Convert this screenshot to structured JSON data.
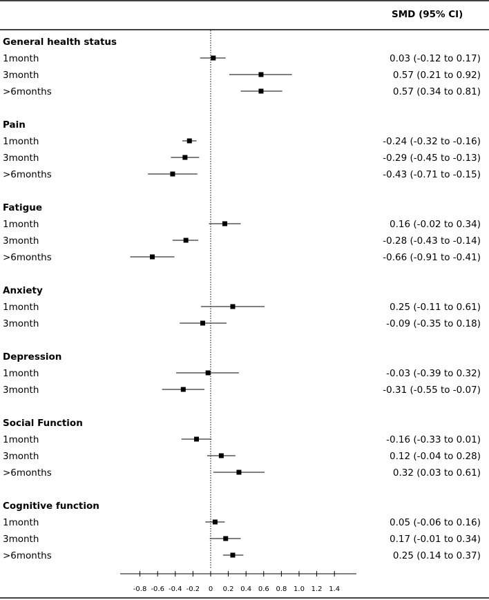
{
  "chart_data": {
    "type": "forest",
    "header": {
      "effect_label": "SMD (95% CI)"
    },
    "x_axis": {
      "ticks": [
        -0.8,
        -0.6,
        -0.4,
        -0.2,
        0,
        0.2,
        0.4,
        0.6,
        0.8,
        1.0,
        1.2,
        1.4
      ],
      "tick_labels": [
        "-0.8",
        "-0.6",
        "-0.4",
        "-0.2",
        "0",
        "0.2",
        "0.4",
        "0.6",
        "0.8",
        "1.0",
        "1.2",
        "1.4"
      ],
      "reference_line": 0
    },
    "groups": [
      {
        "name": "General health status",
        "rows": [
          {
            "label": "1month",
            "est": 0.03,
            "lo": -0.12,
            "hi": 0.17,
            "ci_text": "0.03 (-0.12 to 0.17)"
          },
          {
            "label": "3month",
            "est": 0.57,
            "lo": 0.21,
            "hi": 0.92,
            "ci_text": "0.57 (0.21 to 0.92)"
          },
          {
            "label": ">6months",
            "est": 0.57,
            "lo": 0.34,
            "hi": 0.81,
            "ci_text": "0.57 (0.34 to 0.81)"
          }
        ]
      },
      {
        "name": "Pain",
        "rows": [
          {
            "label": "1month",
            "est": -0.24,
            "lo": -0.32,
            "hi": -0.16,
            "ci_text": "-0.24 (-0.32 to -0.16)"
          },
          {
            "label": "3month",
            "est": -0.29,
            "lo": -0.45,
            "hi": -0.13,
            "ci_text": "-0.29 (-0.45 to -0.13)"
          },
          {
            "label": ">6months",
            "est": -0.43,
            "lo": -0.71,
            "hi": -0.15,
            "ci_text": "-0.43 (-0.71 to -0.15)"
          }
        ]
      },
      {
        "name": "Fatigue",
        "rows": [
          {
            "label": "1month",
            "est": 0.16,
            "lo": -0.02,
            "hi": 0.34,
            "ci_text": "0.16 (-0.02 to 0.34)"
          },
          {
            "label": "3month",
            "est": -0.28,
            "lo": -0.43,
            "hi": -0.14,
            "ci_text": "-0.28 (-0.43 to -0.14)"
          },
          {
            "label": ">6months",
            "est": -0.66,
            "lo": -0.91,
            "hi": -0.41,
            "ci_text": "-0.66 (-0.91 to -0.41)"
          }
        ]
      },
      {
        "name": "Anxiety",
        "rows": [
          {
            "label": "1month",
            "est": 0.25,
            "lo": -0.11,
            "hi": 0.61,
            "ci_text": "0.25 (-0.11 to 0.61)"
          },
          {
            "label": "3month",
            "est": -0.09,
            "lo": -0.35,
            "hi": 0.18,
            "ci_text": "-0.09 (-0.35 to 0.18)"
          }
        ]
      },
      {
        "name": "Depression",
        "rows": [
          {
            "label": "1month",
            "est": -0.03,
            "lo": -0.39,
            "hi": 0.32,
            "ci_text": "-0.03 (-0.39 to 0.32)"
          },
          {
            "label": "3month",
            "est": -0.31,
            "lo": -0.55,
            "hi": -0.07,
            "ci_text": "-0.31 (-0.55 to -0.07)"
          }
        ]
      },
      {
        "name": "Social Function",
        "rows": [
          {
            "label": "1month",
            "est": -0.16,
            "lo": -0.33,
            "hi": 0.01,
            "ci_text": "-0.16 (-0.33 to 0.01)"
          },
          {
            "label": "3month",
            "est": 0.12,
            "lo": -0.04,
            "hi": 0.28,
            "ci_text": "0.12 (-0.04 to 0.28)"
          },
          {
            "label": ">6months",
            "est": 0.32,
            "lo": 0.03,
            "hi": 0.61,
            "ci_text": "0.32 (0.03 to 0.61)"
          }
        ]
      },
      {
        "name": "Cognitive function",
        "rows": [
          {
            "label": "1month",
            "est": 0.05,
            "lo": -0.06,
            "hi": 0.16,
            "ci_text": "0.05 (-0.06 to 0.16)"
          },
          {
            "label": "3month",
            "est": 0.17,
            "lo": -0.01,
            "hi": 0.34,
            "ci_text": "0.17 (-0.01 to 0.34)"
          },
          {
            "label": ">6months",
            "est": 0.25,
            "lo": 0.14,
            "hi": 0.37,
            "ci_text": "0.25 (0.14 to 0.37)"
          }
        ]
      }
    ]
  }
}
